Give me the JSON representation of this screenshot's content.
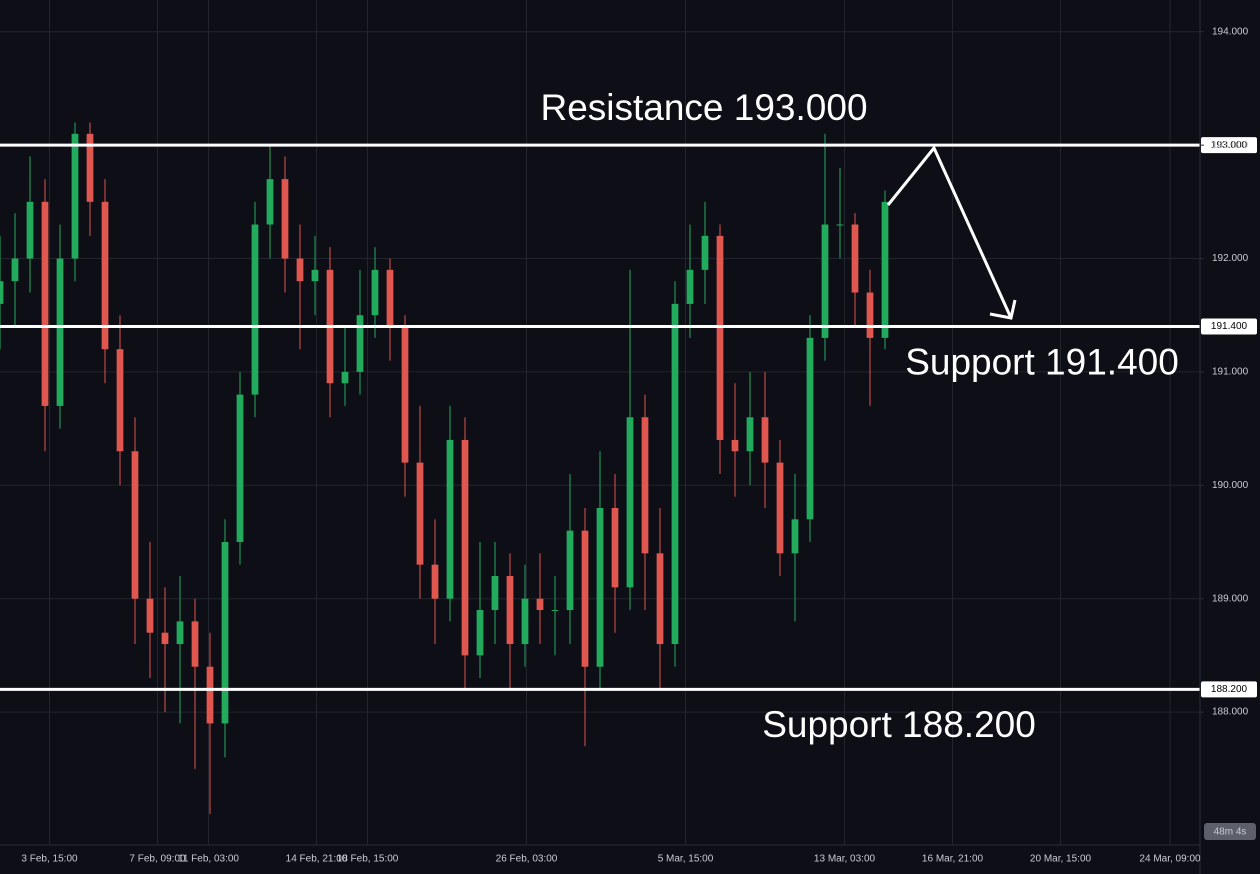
{
  "chart_data": {
    "type": "candlestick",
    "up_color": "#22ab5d",
    "down_color": "#e0574f",
    "grid": true,
    "ylim": [
      186.96,
      194.28
    ],
    "yticks": [
      {
        "value": 194,
        "label": "194.000"
      },
      {
        "value": 193,
        "label": "193.000"
      },
      {
        "value": 192,
        "label": "192.000"
      },
      {
        "value": 191,
        "label": "191.000"
      },
      {
        "value": 190,
        "label": "190.000"
      },
      {
        "value": 189,
        "label": "189.000"
      },
      {
        "value": 188,
        "label": "188.000"
      }
    ],
    "xlim": [
      0,
      80
    ],
    "xticks": [
      {
        "value": 3.3,
        "label": "3 Feb, 15:00"
      },
      {
        "value": 10.5,
        "label": "7 Feb, 09:00"
      },
      {
        "value": 13.9,
        "label": "11 Feb, 03:00"
      },
      {
        "value": 21.1,
        "label": "14 Feb, 21:00"
      },
      {
        "value": 24.5,
        "label": "18 Feb, 15:00"
      },
      {
        "value": 35.1,
        "label": "26 Feb, 03:00"
      },
      {
        "value": 45.7,
        "label": "5 Mar, 15:00"
      },
      {
        "value": 56.3,
        "label": "13 Mar, 03:00"
      },
      {
        "value": 63.5,
        "label": "16 Mar, 21:00"
      },
      {
        "value": 70.7,
        "label": "20 Mar, 15:00"
      },
      {
        "value": 78,
        "label": "24 Mar, 09:00"
      }
    ],
    "open": [
      191.6,
      191.8,
      192.0,
      192.5,
      190.7,
      192.0,
      193.1,
      192.5,
      191.2,
      190.3,
      189.0,
      188.7,
      188.6,
      188.8,
      188.4,
      187.9,
      189.5,
      190.8,
      192.3,
      192.7,
      192.0,
      191.8,
      191.9,
      190.9,
      191.0,
      191.5,
      191.9,
      191.4,
      190.2,
      189.3,
      189.0,
      190.4,
      188.5,
      188.9,
      189.2,
      188.6,
      189.0,
      188.9,
      188.9,
      189.6,
      188.4,
      189.8,
      189.1,
      190.6,
      189.4,
      188.6,
      191.6,
      191.9,
      192.2,
      190.4,
      190.3,
      190.6,
      190.2,
      189.4,
      189.7,
      191.3,
      192.3,
      192.3,
      191.7,
      191.3
    ],
    "high": [
      192.2,
      192.4,
      192.9,
      192.7,
      192.3,
      193.2,
      193.2,
      192.7,
      191.5,
      190.6,
      189.5,
      189.1,
      189.2,
      189.0,
      188.7,
      189.7,
      191.0,
      192.5,
      193.0,
      192.9,
      192.3,
      192.2,
      192.1,
      191.4,
      191.9,
      192.1,
      192.0,
      191.5,
      190.7,
      189.7,
      190.7,
      190.6,
      189.5,
      189.5,
      189.4,
      189.3,
      189.4,
      189.2,
      190.1,
      189.8,
      190.3,
      190.1,
      191.9,
      190.8,
      189.8,
      191.8,
      192.3,
      192.5,
      192.3,
      190.9,
      191.0,
      191.0,
      190.4,
      190.1,
      191.5,
      193.1,
      192.8,
      192.4,
      191.9,
      192.6
    ],
    "low": [
      191.2,
      191.4,
      191.7,
      190.3,
      190.5,
      191.8,
      192.2,
      190.9,
      190.0,
      188.6,
      188.3,
      188.0,
      187.9,
      187.5,
      187.1,
      187.6,
      189.3,
      190.6,
      192.0,
      191.7,
      191.2,
      191.5,
      190.6,
      190.7,
      190.8,
      191.3,
      191.1,
      189.9,
      189.0,
      188.6,
      188.8,
      188.2,
      188.3,
      188.6,
      188.2,
      188.4,
      188.6,
      188.5,
      188.6,
      187.7,
      188.2,
      188.7,
      188.9,
      188.9,
      188.2,
      188.4,
      191.3,
      191.6,
      190.1,
      189.9,
      190.0,
      189.8,
      189.2,
      188.8,
      189.5,
      191.1,
      192.0,
      191.4,
      190.7,
      191.2
    ],
    "close": [
      191.8,
      192.0,
      192.5,
      190.7,
      192.0,
      193.1,
      192.5,
      191.2,
      190.3,
      189.0,
      188.7,
      188.6,
      188.8,
      188.4,
      187.9,
      189.5,
      190.8,
      192.3,
      192.7,
      192.0,
      191.8,
      191.9,
      190.9,
      191.0,
      191.5,
      191.9,
      191.4,
      190.2,
      189.3,
      189.0,
      190.4,
      188.5,
      188.9,
      189.2,
      188.6,
      189.0,
      188.9,
      188.9,
      189.6,
      188.4,
      189.8,
      189.1,
      190.6,
      189.4,
      188.6,
      191.6,
      191.9,
      192.2,
      190.4,
      190.3,
      190.6,
      190.2,
      189.4,
      189.7,
      191.3,
      192.3,
      192.3,
      191.7,
      191.3,
      192.5
    ],
    "levels": [
      {
        "value": 193,
        "label": "193.000",
        "annotation": "Resistance 193.000"
      },
      {
        "value": 191.4,
        "label": "191.400",
        "annotation": "Support 191.400"
      },
      {
        "value": 188.2,
        "label": "188.200",
        "annotation": "Support 188.200"
      }
    ],
    "countdown": "48m 4s"
  }
}
